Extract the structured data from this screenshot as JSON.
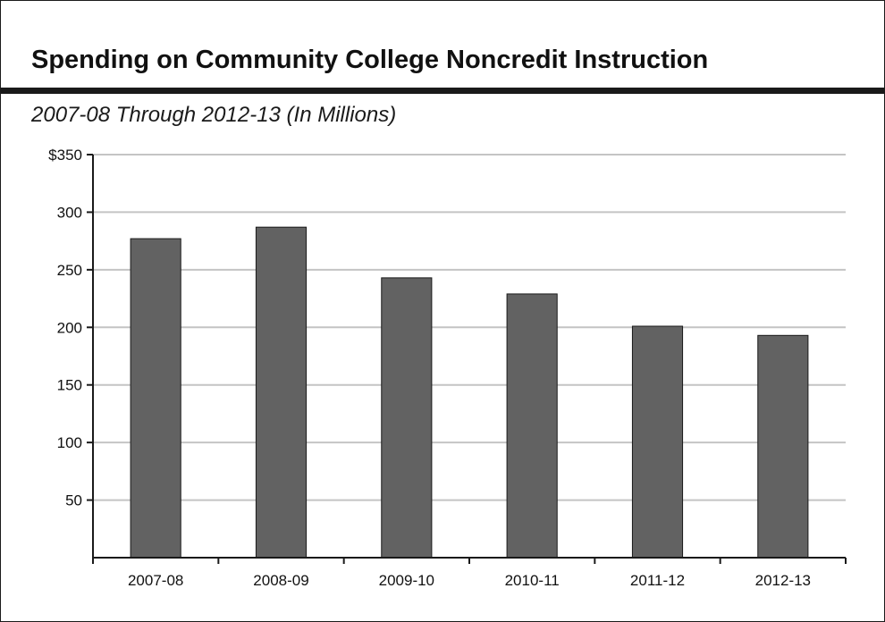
{
  "header": {
    "title": "Spending on Community College Noncredit Instruction",
    "subtitle": "2007-08 Through 2012-13 (In Millions)"
  },
  "colors": {
    "bar_fill": "#626262",
    "bar_stroke": "#1a1a1a",
    "gridline": "#c4c4c4",
    "axis": "#1a1a1a"
  },
  "chart_data": {
    "type": "bar",
    "title": "Spending on Community College Noncredit Instruction",
    "subtitle": "2007-08 Through 2012-13 (In Millions)",
    "xlabel": "",
    "ylabel": "",
    "categories": [
      "2007-08",
      "2008-09",
      "2009-10",
      "2010-11",
      "2011-12",
      "2012-13"
    ],
    "values": [
      277,
      287,
      243,
      229,
      201,
      193
    ],
    "ylim": [
      0,
      350
    ],
    "yticks": [
      50,
      100,
      150,
      200,
      250,
      300,
      350
    ],
    "ytick_labels": [
      "50",
      "100",
      "150",
      "200",
      "250",
      "300",
      "$350"
    ],
    "grid": true,
    "legend": "none"
  }
}
